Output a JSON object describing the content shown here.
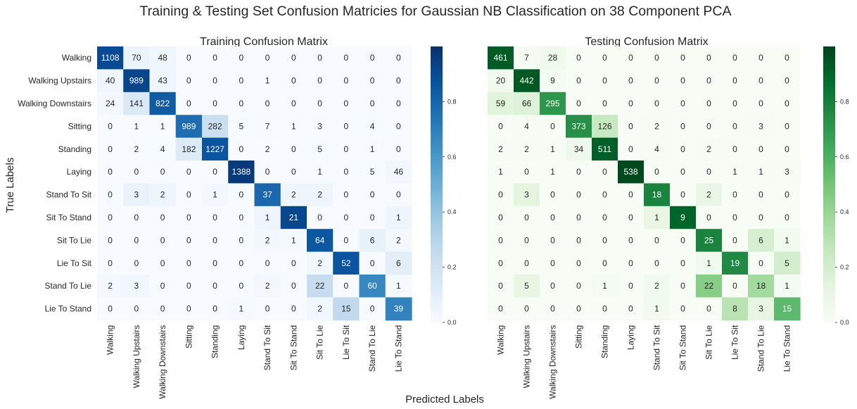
{
  "figure": {
    "suptitle": "Training & Testing Set Confusion Matricies for Gaussian NB Classification on 38 Component PCA",
    "xlabel": "Predicted Labels",
    "ylabel": "True Labels"
  },
  "chart_data": [
    {
      "type": "heatmap",
      "title": "Training Confusion Matrix",
      "colormap": "Blues",
      "colors": {
        "low": "#f7fbff",
        "high": "#08306b"
      },
      "normalization": "row",
      "colorbar": {
        "range": [
          0,
          1
        ],
        "ticks": [
          0.0,
          0.2,
          0.4,
          0.6,
          0.8
        ],
        "tick_labels": [
          "0.0",
          "0.2",
          "0.4",
          "0.6",
          "0.8"
        ]
      },
      "row_labels": [
        "Walking",
        "Walking Upstairs",
        "Walking Downstairs",
        "Sitting",
        "Standing",
        "Laying",
        "Stand To Sit",
        "Sit To Stand",
        "Sit To Lie",
        "Lie To Sit",
        "Stand To Lie",
        "Lie To Stand"
      ],
      "col_labels": [
        "Walking",
        "Walking Upstairs",
        "Walking Downstairs",
        "Sitting",
        "Standing",
        "Laying",
        "Stand To Sit",
        "Sit To Stand",
        "Sit To Lie",
        "Lie To Sit",
        "Stand To Lie",
        "Lie To Stand"
      ],
      "values": [
        [
          1108,
          70,
          48,
          0,
          0,
          0,
          0,
          0,
          0,
          0,
          0,
          0
        ],
        [
          40,
          989,
          43,
          0,
          0,
          0,
          1,
          0,
          0,
          0,
          0,
          0
        ],
        [
          24,
          141,
          822,
          0,
          0,
          0,
          0,
          0,
          0,
          0,
          0,
          0
        ],
        [
          0,
          1,
          1,
          989,
          282,
          5,
          7,
          1,
          3,
          0,
          4,
          0
        ],
        [
          0,
          2,
          4,
          182,
          1227,
          0,
          2,
          0,
          5,
          0,
          1,
          0
        ],
        [
          0,
          0,
          0,
          0,
          0,
          1388,
          0,
          0,
          1,
          0,
          5,
          46
        ],
        [
          0,
          3,
          2,
          0,
          1,
          0,
          37,
          2,
          2,
          0,
          0,
          0
        ],
        [
          0,
          0,
          0,
          0,
          0,
          0,
          1,
          21,
          0,
          0,
          0,
          1
        ],
        [
          0,
          0,
          0,
          0,
          0,
          0,
          2,
          1,
          64,
          0,
          6,
          2
        ],
        [
          0,
          0,
          0,
          0,
          0,
          0,
          0,
          0,
          2,
          52,
          0,
          6
        ],
        [
          2,
          3,
          0,
          0,
          0,
          0,
          2,
          0,
          22,
          0,
          60,
          1
        ],
        [
          0,
          0,
          0,
          0,
          0,
          1,
          0,
          0,
          2,
          15,
          0,
          39
        ]
      ]
    },
    {
      "type": "heatmap",
      "title": "Testing Confusion Matrix",
      "colormap": "Greens",
      "colors": {
        "low": "#f7fcf5",
        "high": "#00441b"
      },
      "normalization": "row",
      "colorbar": {
        "range": [
          0,
          1
        ],
        "ticks": [
          0.0,
          0.2,
          0.4,
          0.6,
          0.8
        ],
        "tick_labels": [
          "0.0",
          "0.2",
          "0.4",
          "0.6",
          "0.8"
        ]
      },
      "row_labels": [
        "Walking",
        "Walking Upstairs",
        "Walking Downstairs",
        "Sitting",
        "Standing",
        "Laying",
        "Stand To Sit",
        "Sit To Stand",
        "Sit To Lie",
        "Lie To Sit",
        "Stand To Lie",
        "Lie To Stand"
      ],
      "col_labels": [
        "Walking",
        "Walking Upstairs",
        "Walking Downstairs",
        "Sitting",
        "Standing",
        "Laying",
        "Stand To Sit",
        "Sit To Stand",
        "Sit To Lie",
        "Lie To Sit",
        "Stand To Lie",
        "Lie To Stand"
      ],
      "values": [
        [
          461,
          7,
          28,
          0,
          0,
          0,
          0,
          0,
          0,
          0,
          0,
          0
        ],
        [
          20,
          442,
          9,
          0,
          0,
          0,
          0,
          0,
          0,
          0,
          0,
          0
        ],
        [
          59,
          66,
          295,
          0,
          0,
          0,
          0,
          0,
          0,
          0,
          0,
          0
        ],
        [
          0,
          4,
          0,
          373,
          126,
          0,
          2,
          0,
          0,
          0,
          3,
          0
        ],
        [
          2,
          2,
          1,
          34,
          511,
          0,
          4,
          0,
          2,
          0,
          0,
          0
        ],
        [
          1,
          0,
          1,
          0,
          0,
          538,
          0,
          0,
          0,
          1,
          1,
          3
        ],
        [
          0,
          3,
          0,
          0,
          0,
          0,
          18,
          0,
          2,
          0,
          0,
          0
        ],
        [
          0,
          0,
          0,
          0,
          0,
          0,
          1,
          9,
          0,
          0,
          0,
          0
        ],
        [
          0,
          0,
          0,
          0,
          0,
          0,
          0,
          0,
          25,
          0,
          6,
          1
        ],
        [
          0,
          0,
          0,
          0,
          0,
          0,
          0,
          0,
          1,
          19,
          0,
          5
        ],
        [
          0,
          5,
          0,
          0,
          1,
          0,
          2,
          0,
          22,
          0,
          18,
          1
        ],
        [
          0,
          0,
          0,
          0,
          0,
          0,
          1,
          0,
          0,
          8,
          3,
          15
        ]
      ]
    }
  ]
}
